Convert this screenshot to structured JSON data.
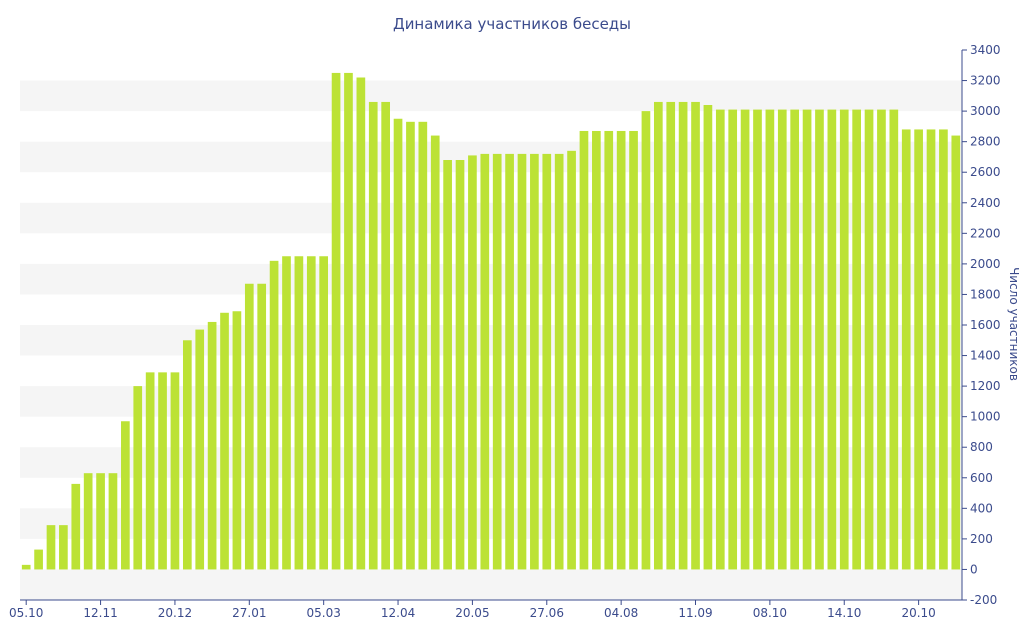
{
  "colors": {
    "bar": "#bce235",
    "band": "#f5f5f5",
    "axis": "#3b4b8c",
    "text": "#3b4b8c"
  },
  "chart_data": {
    "type": "bar",
    "title": "Динамика участников беседы",
    "xlabel": "",
    "ylabel": "Число участников",
    "ylim": [
      -200,
      3400
    ],
    "y_ticks": [
      -200,
      0,
      200,
      400,
      600,
      800,
      1000,
      1200,
      1400,
      1600,
      1800,
      2000,
      2200,
      2400,
      2600,
      2800,
      3000,
      3200,
      3400
    ],
    "y_axis_position": "right",
    "grid": "alternating horizontal bands",
    "x_tick_labels": [
      {
        "label": "05.10",
        "index": 0
      },
      {
        "label": "12.11",
        "index": 6
      },
      {
        "label": "20.12",
        "index": 12
      },
      {
        "label": "27.01",
        "index": 18
      },
      {
        "label": "05.03",
        "index": 24
      },
      {
        "label": "12.04",
        "index": 30
      },
      {
        "label": "20.05",
        "index": 36
      },
      {
        "label": "27.06",
        "index": 42
      },
      {
        "label": "04.08",
        "index": 48
      },
      {
        "label": "11.09",
        "index": 54
      },
      {
        "label": "08.10",
        "index": 60
      },
      {
        "label": "14.10",
        "index": 66
      },
      {
        "label": "20.10",
        "index": 72
      }
    ],
    "values": [
      30,
      130,
      290,
      290,
      560,
      630,
      630,
      630,
      970,
      1200,
      1290,
      1290,
      1290,
      1500,
      1570,
      1620,
      1680,
      1690,
      1870,
      1870,
      2020,
      2050,
      2050,
      2050,
      2050,
      3250,
      3250,
      3220,
      3060,
      3060,
      2950,
      2930,
      2930,
      2840,
      2680,
      2680,
      2710,
      2720,
      2720,
      2720,
      2720,
      2720,
      2720,
      2720,
      2740,
      2870,
      2870,
      2870,
      2870,
      2870,
      3000,
      3060,
      3060,
      3060,
      3060,
      3040,
      3010,
      3010,
      3010,
      3010,
      3010,
      3010,
      3010,
      3010,
      3010,
      3010,
      3010,
      3010,
      3010,
      3010,
      3010,
      2880,
      2880,
      2880,
      2880,
      2840
    ]
  }
}
